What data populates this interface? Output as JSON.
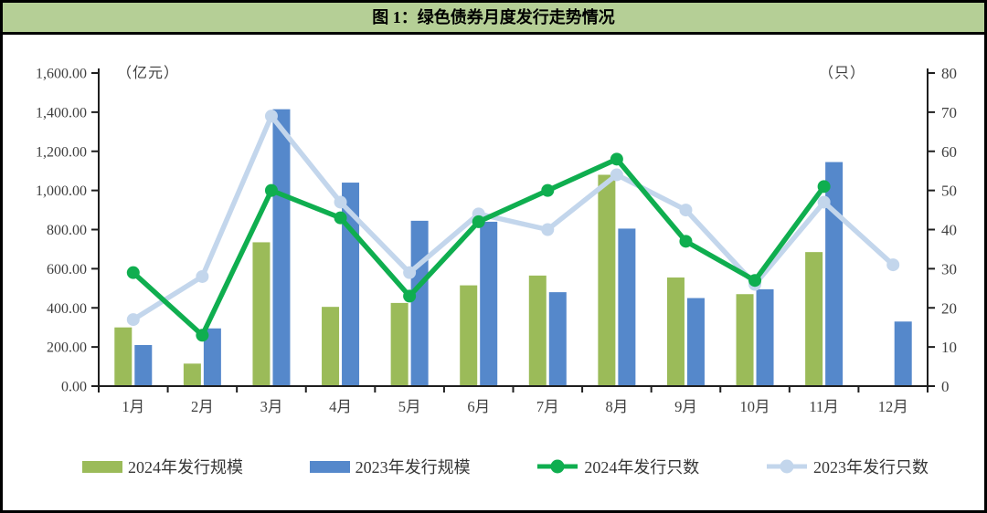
{
  "page": {
    "title": "图 1：绿色债券月度发行走势情况"
  },
  "colors": {
    "title_bg": "#B5CF96",
    "border": "#000000",
    "axis_line": "#1f1f1f",
    "axis_text": "#3f3f3f",
    "bar_2024": "#9BBB59",
    "bar_2023": "#5588CB",
    "line_2024": "#0FAE4F",
    "line_2023": "#C3D6EC"
  },
  "chart_data": {
    "type": "combo-bar-line",
    "title": "图 1：绿色债券月度发行走势情况",
    "grid": false,
    "legend_position": "bottom",
    "categories": [
      "1月",
      "2月",
      "3月",
      "4月",
      "5月",
      "6月",
      "7月",
      "8月",
      "9月",
      "10月",
      "11月",
      "12月"
    ],
    "series": [
      {
        "name": "2024年发行规模",
        "type": "bar",
        "axis": "left",
        "color": "#9BBB59",
        "values": [
          300,
          115,
          735,
          405,
          425,
          515,
          565,
          1080,
          555,
          470,
          685,
          null
        ]
      },
      {
        "name": "2023年发行规模",
        "type": "bar",
        "axis": "left",
        "color": "#5588CB",
        "values": [
          210,
          295,
          1415,
          1040,
          845,
          840,
          480,
          805,
          450,
          495,
          1145,
          330
        ]
      },
      {
        "name": "2024年发行只数",
        "type": "line",
        "axis": "right",
        "color": "#0FAE4F",
        "values": [
          29,
          13,
          50,
          43,
          23,
          42,
          50,
          58,
          37,
          27,
          51,
          null
        ]
      },
      {
        "name": "2023年发行只数",
        "type": "line",
        "axis": "right",
        "color": "#C3D6EC",
        "values": [
          17,
          28,
          69,
          47,
          29,
          44,
          40,
          54,
          45,
          26,
          47,
          31
        ]
      }
    ],
    "axes": {
      "left": {
        "title": "（亿元）",
        "min": 0,
        "max": 1600,
        "step": 200,
        "ticks": [
          "0.00",
          "200.00",
          "400.00",
          "600.00",
          "800.00",
          "1,000.00",
          "1,200.00",
          "1,400.00",
          "1,600.00"
        ]
      },
      "right": {
        "title": "（只）",
        "min": 0,
        "max": 80,
        "step": 10,
        "ticks": [
          "0",
          "10",
          "20",
          "30",
          "40",
          "50",
          "60",
          "70",
          "80"
        ]
      }
    }
  }
}
